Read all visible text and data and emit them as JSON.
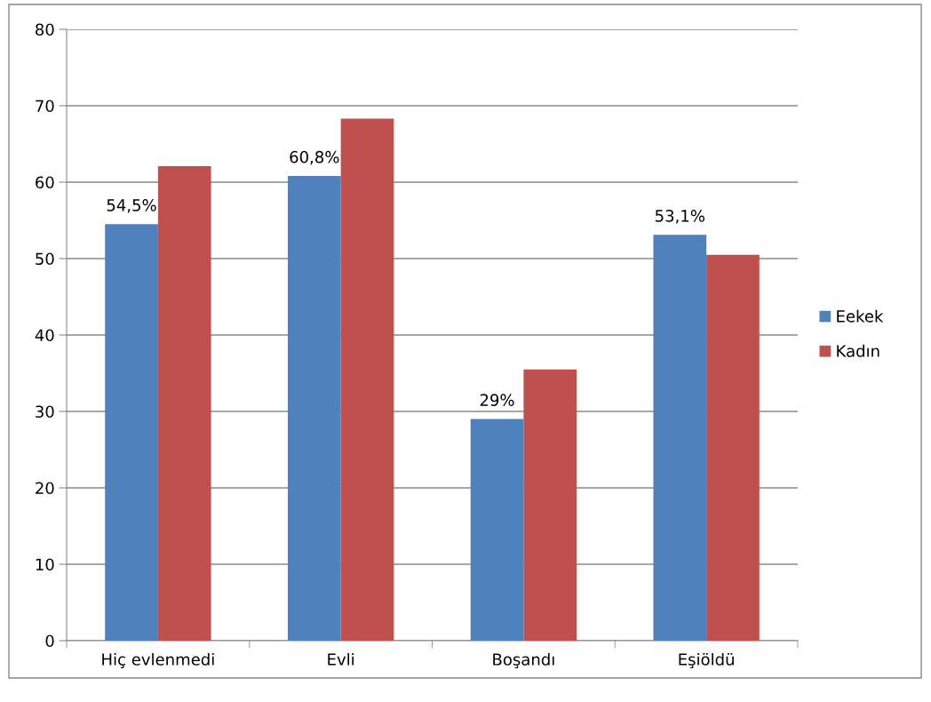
{
  "chart_data": {
    "type": "bar",
    "categories": [
      "Hiç evlenmedi",
      "Evli",
      "Boşandı",
      "Eşiöldü"
    ],
    "series": [
      {
        "name": "Eekek",
        "color": "#4f81bd",
        "values": [
          54.5,
          60.8,
          29,
          53.1
        ],
        "value_labels": [
          "54,5%",
          "60,8%",
          "29%",
          "53,1%"
        ]
      },
      {
        "name": "Kadın",
        "color": "#c0504d",
        "values": [
          62.1,
          68.3,
          35.5,
          50.5
        ]
      }
    ],
    "ylim": [
      0,
      80
    ],
    "yticks": [
      0,
      10,
      20,
      30,
      40,
      50,
      60,
      70,
      80
    ],
    "grid": "y",
    "legend": "right"
  }
}
